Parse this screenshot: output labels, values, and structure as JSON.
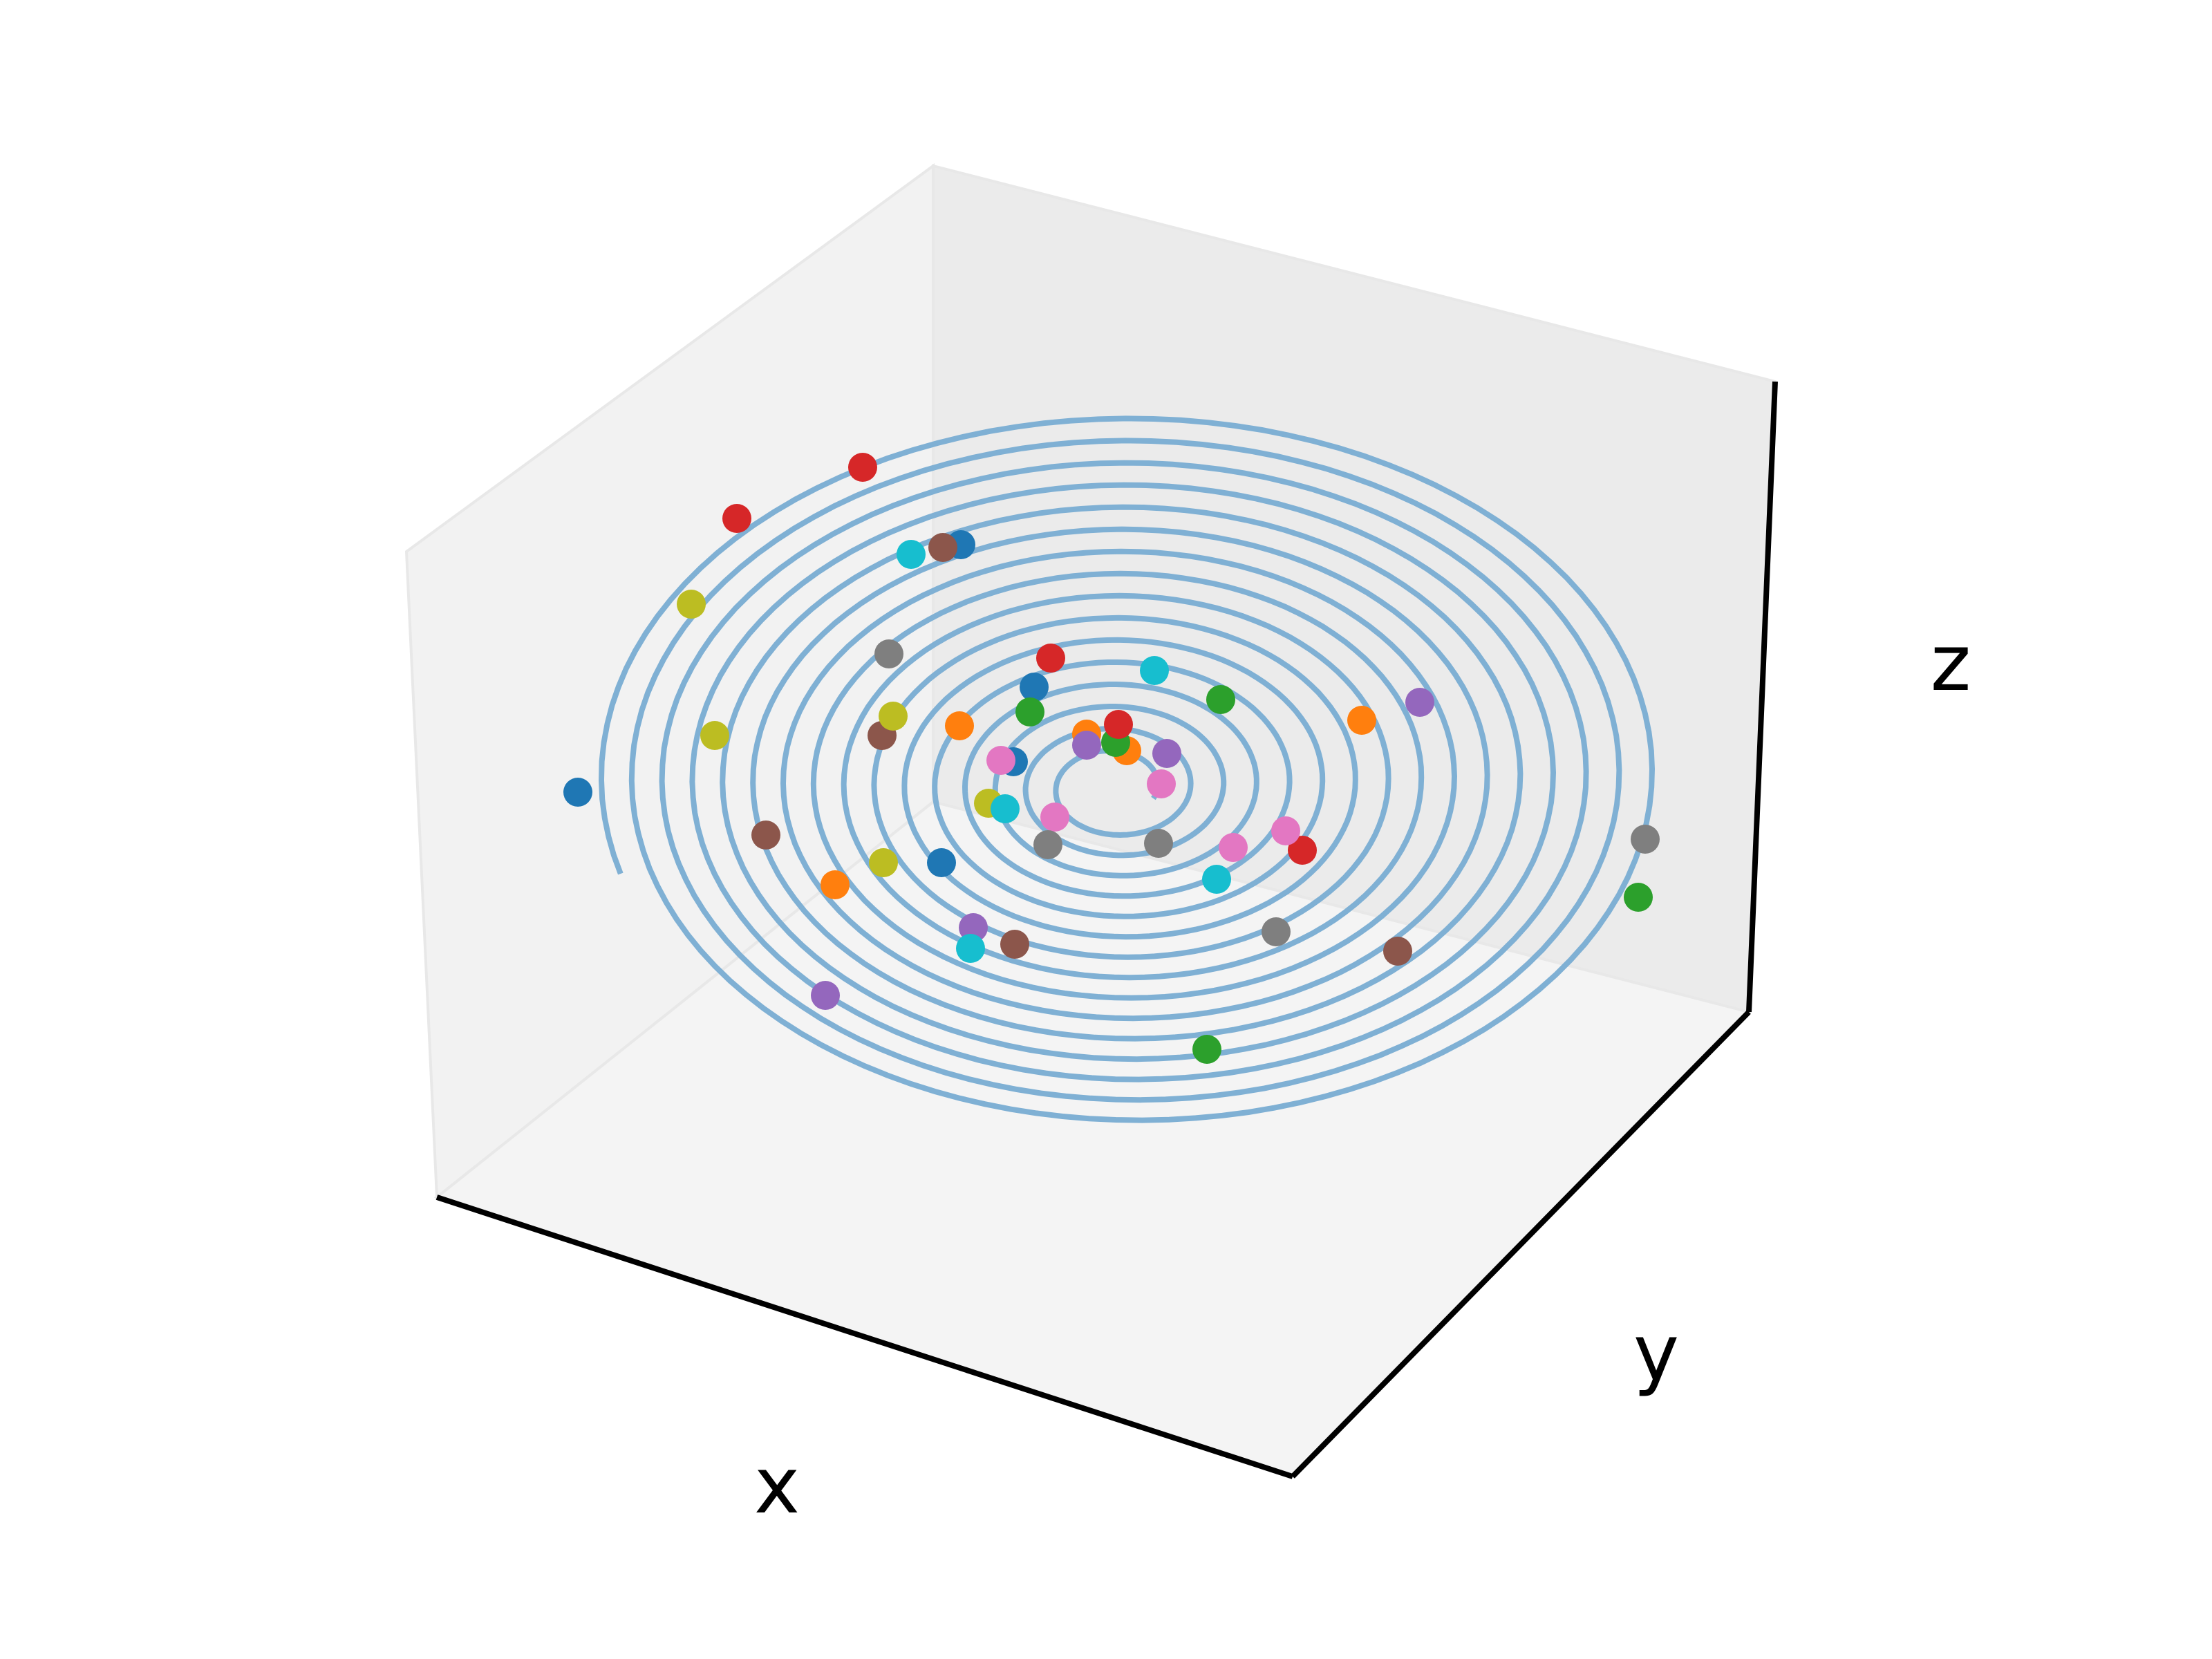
{
  "chart_data": {
    "type": "scatter",
    "projection": "3d",
    "title": "",
    "xlabel": "x",
    "ylabel": "y",
    "zlabel": "z",
    "grid": false,
    "ticks": "hidden",
    "legend": "none",
    "series": [
      {
        "kind": "line",
        "description_type": "planar spiral (flat in z)",
        "color": "#7fb0d4",
        "turns": 15.6,
        "points_per_turn": 120
      },
      {
        "kind": "scatter",
        "points": [
          {
            "x": 0.418,
            "y": 0.573,
            "color": "#1f77b4"
          },
          {
            "x": 0.695,
            "y": 0.394,
            "color": "#1f77b4"
          },
          {
            "x": 0.681,
            "y": 0.624,
            "color": "#1f77b4"
          },
          {
            "x": 0.748,
            "y": 0.497,
            "color": "#1f77b4"
          },
          {
            "x": 0.733,
            "y": 0.551,
            "color": "#1f77b4"
          },
          {
            "x": 0.604,
            "y": 0.64,
            "color": "#ff7f0e"
          },
          {
            "x": 0.694,
            "y": 0.525,
            "color": "#ff7f0e"
          },
          {
            "x": 0.985,
            "y": 0.521,
            "color": "#ff7f0e"
          },
          {
            "x": 0.786,
            "y": 0.531,
            "color": "#ff7f0e"
          },
          {
            "x": 0.815,
            "y": 0.543,
            "color": "#ff7f0e"
          },
          {
            "x": 0.873,
            "y": 0.759,
            "color": "#2ca02c"
          },
          {
            "x": 1.185,
            "y": 0.649,
            "color": "#2ca02c"
          },
          {
            "x": 0.883,
            "y": 0.506,
            "color": "#2ca02c"
          },
          {
            "x": 0.745,
            "y": 0.515,
            "color": "#2ca02c"
          },
          {
            "x": 0.807,
            "y": 0.537,
            "color": "#2ca02c"
          },
          {
            "x": 0.624,
            "y": 0.338,
            "color": "#d62728"
          },
          {
            "x": 0.533,
            "y": 0.375,
            "color": "#d62728"
          },
          {
            "x": 0.942,
            "y": 0.615,
            "color": "#d62728"
          },
          {
            "x": 0.76,
            "y": 0.476,
            "color": "#d62728"
          },
          {
            "x": 0.809,
            "y": 0.524,
            "color": "#d62728"
          },
          {
            "x": 0.597,
            "y": 0.72,
            "color": "#9467bd"
          },
          {
            "x": 1.027,
            "y": 0.508,
            "color": "#9467bd"
          },
          {
            "x": 0.704,
            "y": 0.671,
            "color": "#9467bd"
          },
          {
            "x": 0.844,
            "y": 0.545,
            "color": "#9467bd"
          },
          {
            "x": 0.786,
            "y": 0.539,
            "color": "#9467bd"
          },
          {
            "x": 0.554,
            "y": 0.604,
            "color": "#8c564b"
          },
          {
            "x": 0.682,
            "y": 0.396,
            "color": "#8c564b"
          },
          {
            "x": 1.011,
            "y": 0.688,
            "color": "#8c564b"
          },
          {
            "x": 0.734,
            "y": 0.683,
            "color": "#8c564b"
          },
          {
            "x": 0.638,
            "y": 0.532,
            "color": "#8c564b"
          },
          {
            "x": 0.93,
            "y": 0.601,
            "color": "#e377c2"
          },
          {
            "x": 0.892,
            "y": 0.613,
            "color": "#e377c2"
          },
          {
            "x": 0.724,
            "y": 0.55,
            "color": "#e377c2"
          },
          {
            "x": 0.763,
            "y": 0.591,
            "color": "#e377c2"
          },
          {
            "x": 0.84,
            "y": 0.567,
            "color": "#e377c2"
          },
          {
            "x": 1.19,
            "y": 0.607,
            "color": "#7f7f7f"
          },
          {
            "x": 0.643,
            "y": 0.473,
            "color": "#7f7f7f"
          },
          {
            "x": 0.923,
            "y": 0.674,
            "color": "#7f7f7f"
          },
          {
            "x": 0.838,
            "y": 0.61,
            "color": "#7f7f7f"
          },
          {
            "x": 0.758,
            "y": 0.611,
            "color": "#7f7f7f"
          },
          {
            "x": 0.5,
            "y": 0.437,
            "color": "#bcbd22"
          },
          {
            "x": 0.517,
            "y": 0.532,
            "color": "#bcbd22"
          },
          {
            "x": 0.639,
            "y": 0.624,
            "color": "#bcbd22"
          },
          {
            "x": 0.646,
            "y": 0.518,
            "color": "#bcbd22"
          },
          {
            "x": 0.715,
            "y": 0.581,
            "color": "#bcbd22"
          },
          {
            "x": 0.659,
            "y": 0.401,
            "color": "#17becf"
          },
          {
            "x": 0.835,
            "y": 0.485,
            "color": "#17becf"
          },
          {
            "x": 0.88,
            "y": 0.636,
            "color": "#17becf"
          },
          {
            "x": 0.702,
            "y": 0.686,
            "color": "#17becf"
          },
          {
            "x": 0.727,
            "y": 0.585,
            "color": "#17becf"
          }
        ]
      }
    ]
  }
}
